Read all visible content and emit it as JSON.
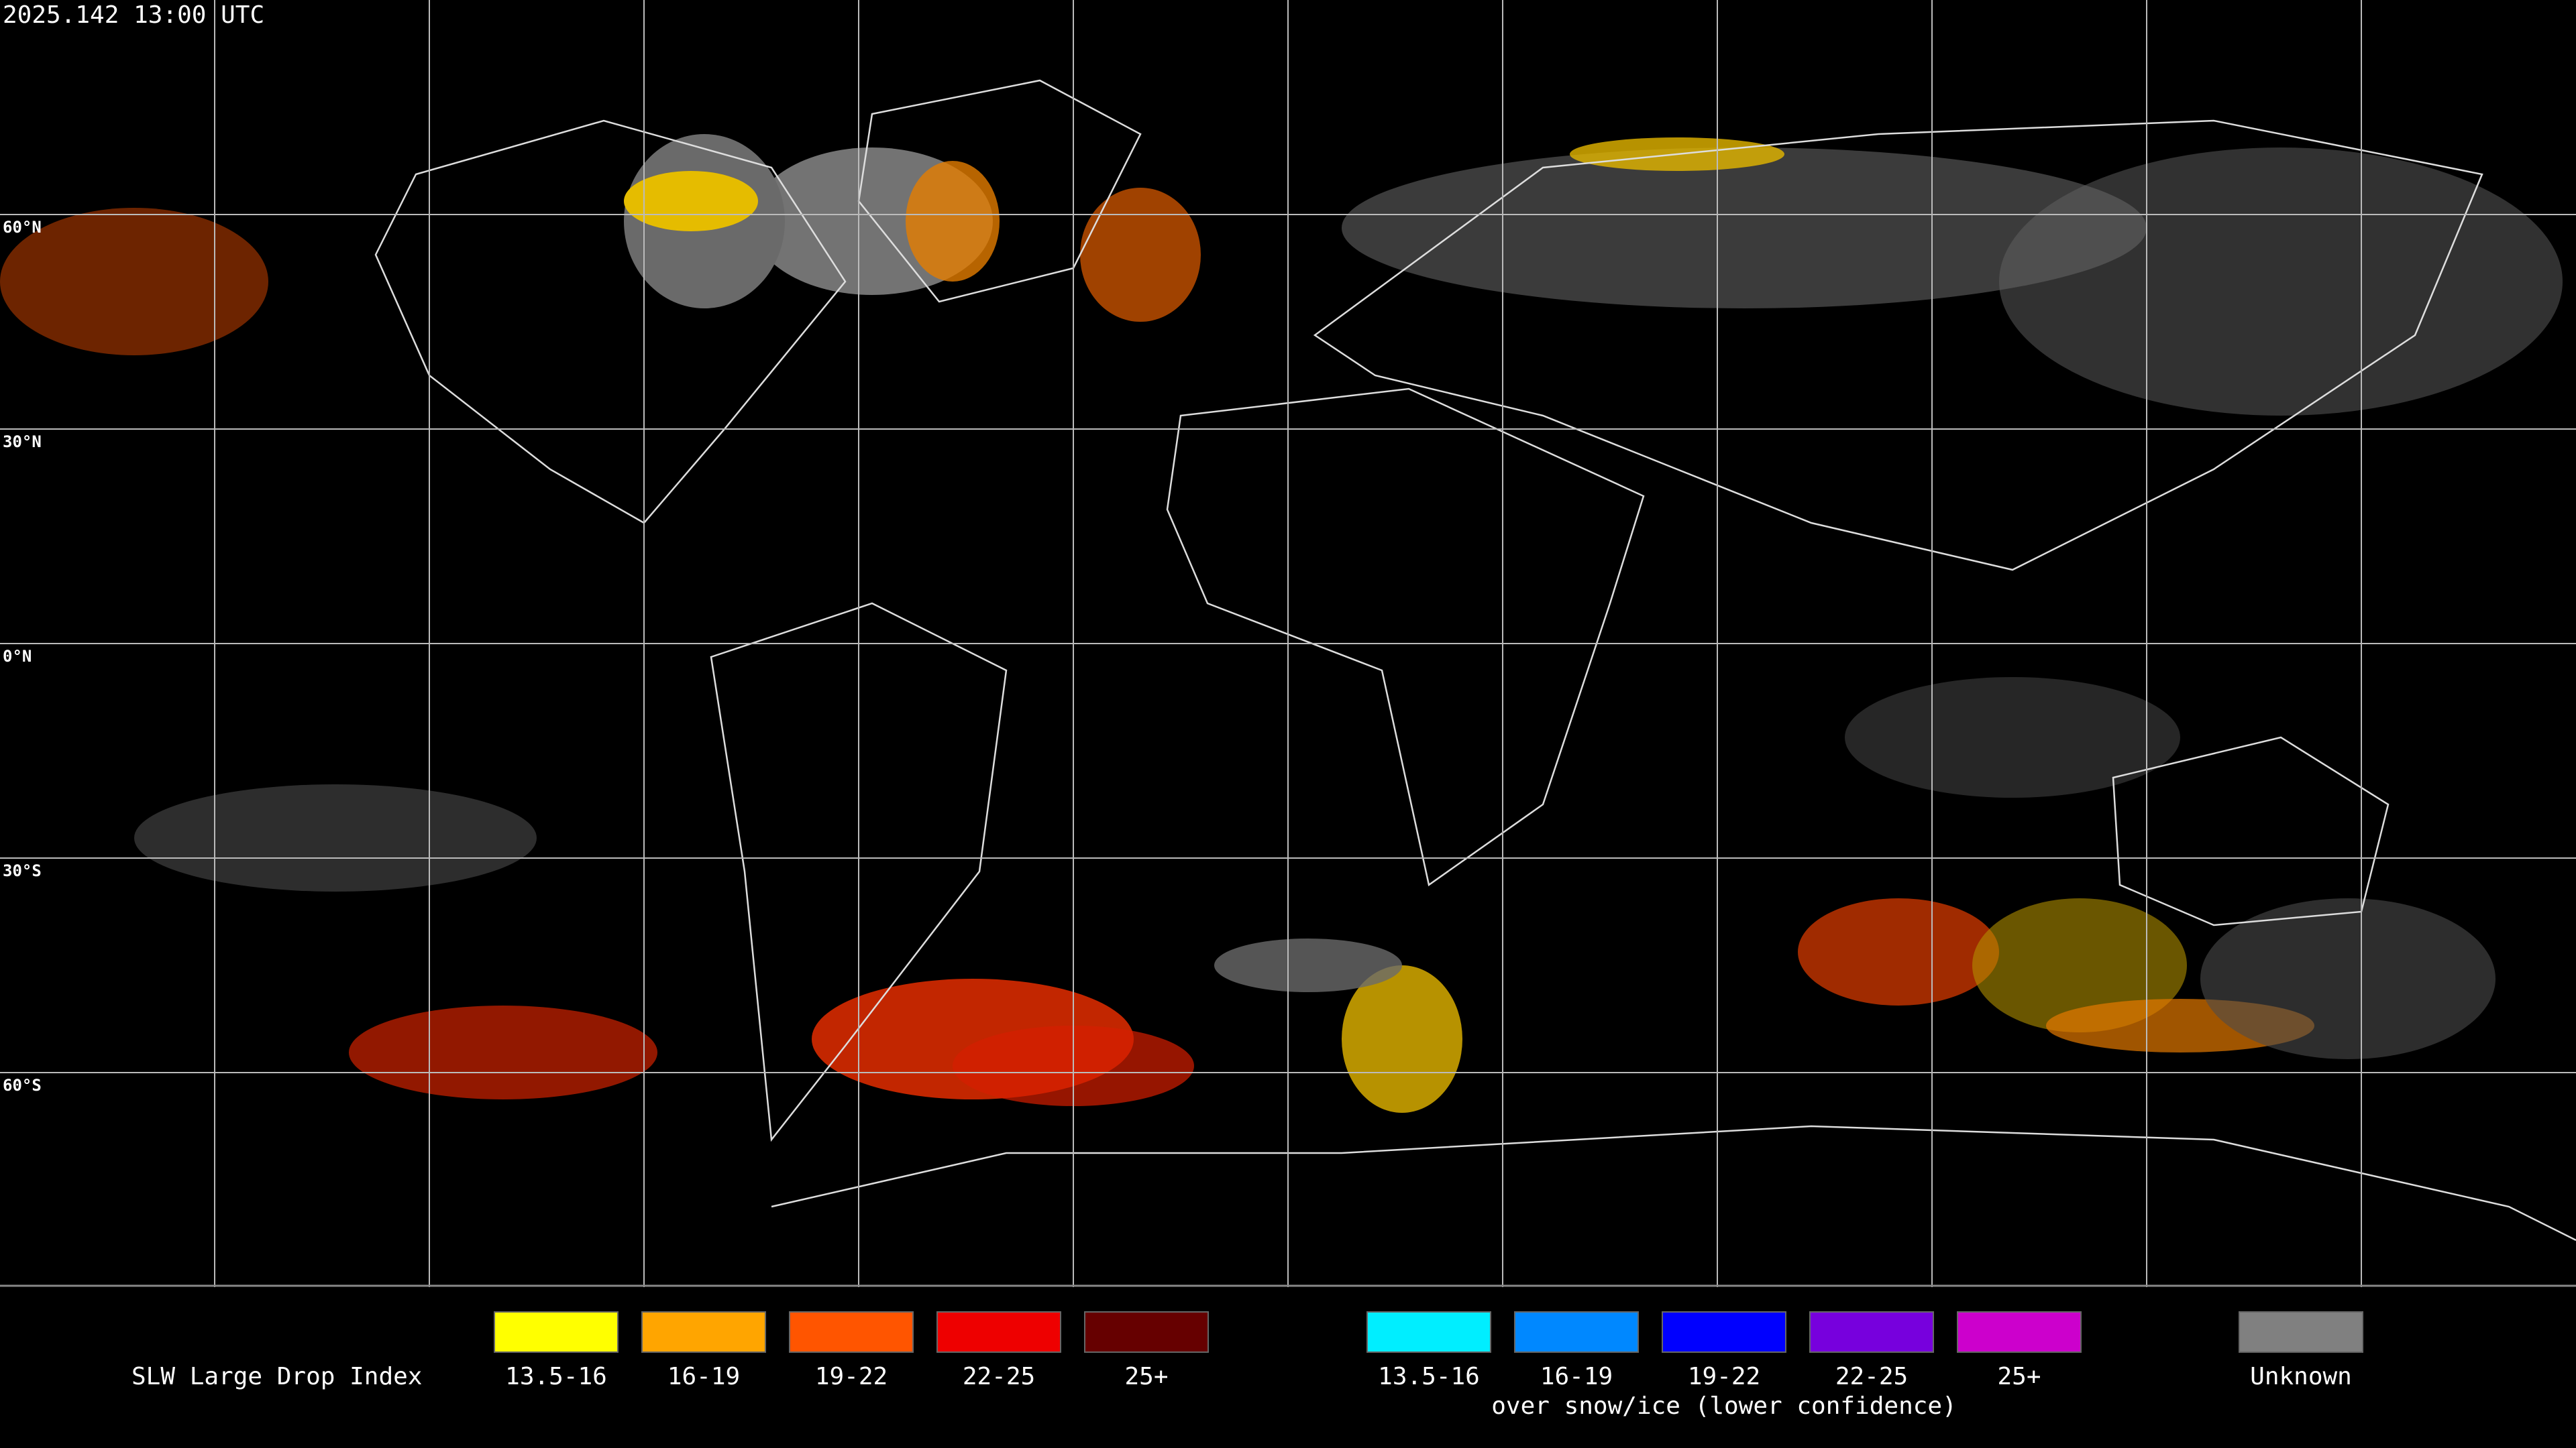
{
  "header": {
    "timestamp": "2025.142 13:00 UTC"
  },
  "map": {
    "latitude_labels": [
      "60°N",
      "30°N",
      "0°N",
      "30°S",
      "60°S"
    ]
  },
  "legend": {
    "title": "SLW Large Drop Index",
    "groups": [
      {
        "items": [
          {
            "label": "13.5-16",
            "color": "#ffff00"
          },
          {
            "label": "16-19",
            "color": "#ffa500"
          },
          {
            "label": "19-22",
            "color": "#ff5500"
          },
          {
            "label": "22-25",
            "color": "#ee0000"
          },
          {
            "label": "25+",
            "color": "#660000"
          }
        ]
      },
      {
        "items": [
          {
            "label": "13.5-16",
            "color": "#00eeff"
          },
          {
            "label": "16-19",
            "color": "#0088ff"
          },
          {
            "label": "19-22",
            "color": "#0000ff"
          },
          {
            "label": "22-25",
            "color": "#7700dd"
          },
          {
            "label": "25+",
            "color": "#cc00cc"
          }
        ],
        "note": "over snow/ice (lower confidence)"
      }
    ],
    "unknown": {
      "label": "Unknown",
      "color": "#808080"
    }
  }
}
